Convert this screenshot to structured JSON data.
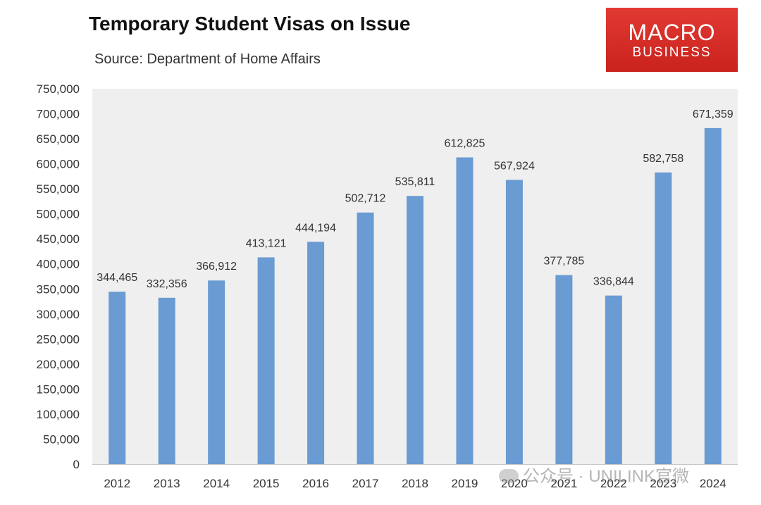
{
  "chart_data": {
    "type": "bar",
    "title": "Temporary Student Visas on Issue",
    "subtitle": "Source: Department of Home Affairs",
    "categories": [
      "2012",
      "2013",
      "2014",
      "2015",
      "2016",
      "2017",
      "2018",
      "2019",
      "2020",
      "2021",
      "2022",
      "2023",
      "2024"
    ],
    "values": [
      344465,
      332356,
      366912,
      413121,
      444194,
      502712,
      535811,
      612825,
      567924,
      377785,
      336844,
      582758,
      671359
    ],
    "data_labels": [
      "344,465",
      "332,356",
      "366,912",
      "413,121",
      "444,194",
      "502,712",
      "535,811",
      "612,825",
      "567,924",
      "377,785",
      "336,844",
      "582,758",
      "671,359"
    ],
    "y_ticks": [
      "0",
      "50,000",
      "100,000",
      "150,000",
      "200,000",
      "250,000",
      "300,000",
      "350,000",
      "400,000",
      "450,000",
      "500,000",
      "550,000",
      "600,000",
      "650,000",
      "700,000",
      "750,000"
    ],
    "ylim": [
      0,
      750000
    ],
    "grid": false,
    "bar_color": "#6a9bd3",
    "plot_background": "#efefef"
  },
  "logo": {
    "line1": "MACRO",
    "line2": "BUSINESS",
    "color": "#d42a24"
  },
  "watermark": "公众号 · UNILINK官微"
}
